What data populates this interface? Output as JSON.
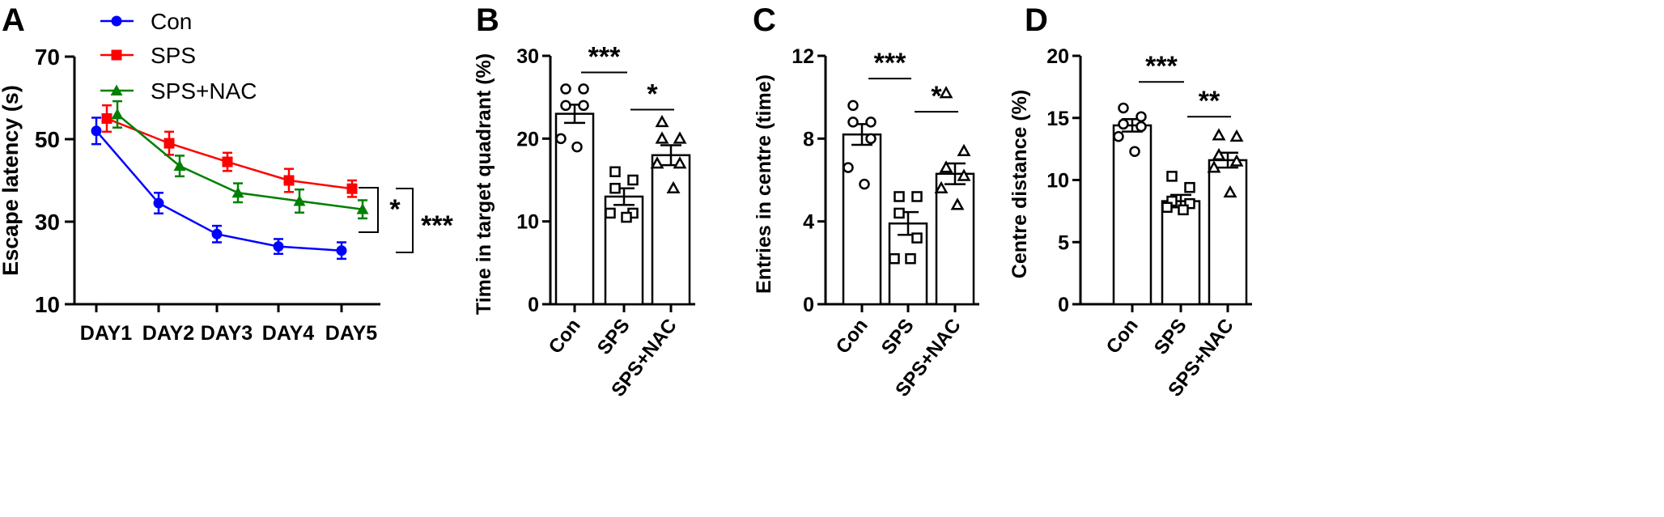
{
  "colors": {
    "con": "#0000ff",
    "sps": "#ff0000",
    "nac": "#008000",
    "ink": "#000000"
  },
  "chart_data": [
    {
      "panel": "A",
      "type": "line",
      "ylabel": "Escape latency (s)",
      "xlabel": "",
      "categories": [
        "DAY1",
        "DAY2",
        "DAY3",
        "DAY4",
        "DAY5"
      ],
      "ylim": [
        10,
        70
      ],
      "yticks": [
        10,
        30,
        50,
        70
      ],
      "legend": {
        "placement": "top-left",
        "entries": [
          "Con",
          "SPS",
          "SPS+NAC"
        ]
      },
      "series": [
        {
          "name": "Con",
          "marker": "circle",
          "values": [
            52,
            34.5,
            27,
            24,
            23
          ],
          "errors": [
            3.2,
            2.5,
            2,
            1.8,
            2
          ]
        },
        {
          "name": "SPS",
          "marker": "square",
          "values": [
            55,
            49,
            44.5,
            40,
            38
          ],
          "errors": [
            3.2,
            2.8,
            2.2,
            2.8,
            2
          ]
        },
        {
          "name": "SPS+NAC",
          "marker": "triangle",
          "values": [
            56,
            43.5,
            37,
            35,
            33
          ],
          "errors": [
            3.2,
            2.5,
            2.3,
            2.8,
            2.2
          ]
        }
      ],
      "annotations": [
        {
          "text": "*",
          "compare": "SPS vs SPS+NAC"
        },
        {
          "text": "***",
          "compare": "Con vs SPS"
        }
      ]
    },
    {
      "panel": "B",
      "type": "bar",
      "ylabel": "Time in target quadrant (%)",
      "categories": [
        "Con",
        "SPS",
        "SPS+NAC"
      ],
      "ylim": [
        0,
        30
      ],
      "yticks": [
        0,
        10,
        20,
        30
      ],
      "values": [
        23,
        13,
        18
      ],
      "errors": [
        1.1,
        1.0,
        1.2
      ],
      "points": [
        [
          26,
          26,
          24,
          24,
          20,
          19
        ],
        [
          16,
          15,
          14,
          11,
          11,
          10.5
        ],
        [
          22,
          20,
          20,
          17,
          17,
          14
        ]
      ],
      "annotations": [
        {
          "text": "***",
          "from": 0,
          "to": 1,
          "y": 28
        },
        {
          "text": "*",
          "from": 1,
          "to": 2,
          "y": 23.5
        }
      ]
    },
    {
      "panel": "C",
      "type": "bar",
      "ylabel": "Entries in centre (time)",
      "categories": [
        "Con",
        "SPS",
        "SPS+NAC"
      ],
      "ylim": [
        0,
        12
      ],
      "yticks": [
        0,
        4,
        8,
        12
      ],
      "values": [
        8.2,
        3.9,
        6.3
      ],
      "errors": [
        0.5,
        0.55,
        0.5
      ],
      "points": [
        [
          9.6,
          8.8,
          8.8,
          8,
          6.6,
          5.8
        ],
        [
          5.2,
          5.2,
          4.4,
          3.2,
          2.2,
          2.2
        ],
        [
          10.2,
          7.4,
          6.6,
          6.2,
          5.6,
          4.8
        ]
      ],
      "annotations": [
        {
          "text": "***",
          "from": 0,
          "to": 1,
          "y": 10.9
        },
        {
          "text": "*",
          "from": 1,
          "to": 2,
          "y": 9.3
        }
      ]
    },
    {
      "panel": "D",
      "type": "bar",
      "ylabel": "Centre distance (%)",
      "categories": [
        "Con",
        "SPS",
        "SPS+NAC"
      ],
      "ylim": [
        0,
        20
      ],
      "yticks": [
        0,
        5,
        10,
        15,
        20
      ],
      "values": [
        14.4,
        8.3,
        11.6
      ],
      "errors": [
        0.5,
        0.5,
        0.6
      ],
      "points": [
        [
          15.8,
          15.1,
          14.5,
          14.3,
          13.5,
          12.3
        ],
        [
          10.3,
          9.4,
          8.3,
          8.1,
          7.8,
          7.6
        ],
        [
          13.6,
          13.5,
          12,
          11.5,
          11,
          9
        ]
      ],
      "annotations": [
        {
          "text": "***",
          "from": 0,
          "to": 1,
          "y": 17.9
        },
        {
          "text": "**",
          "from": 1,
          "to": 2,
          "y": 15.1
        }
      ]
    }
  ]
}
